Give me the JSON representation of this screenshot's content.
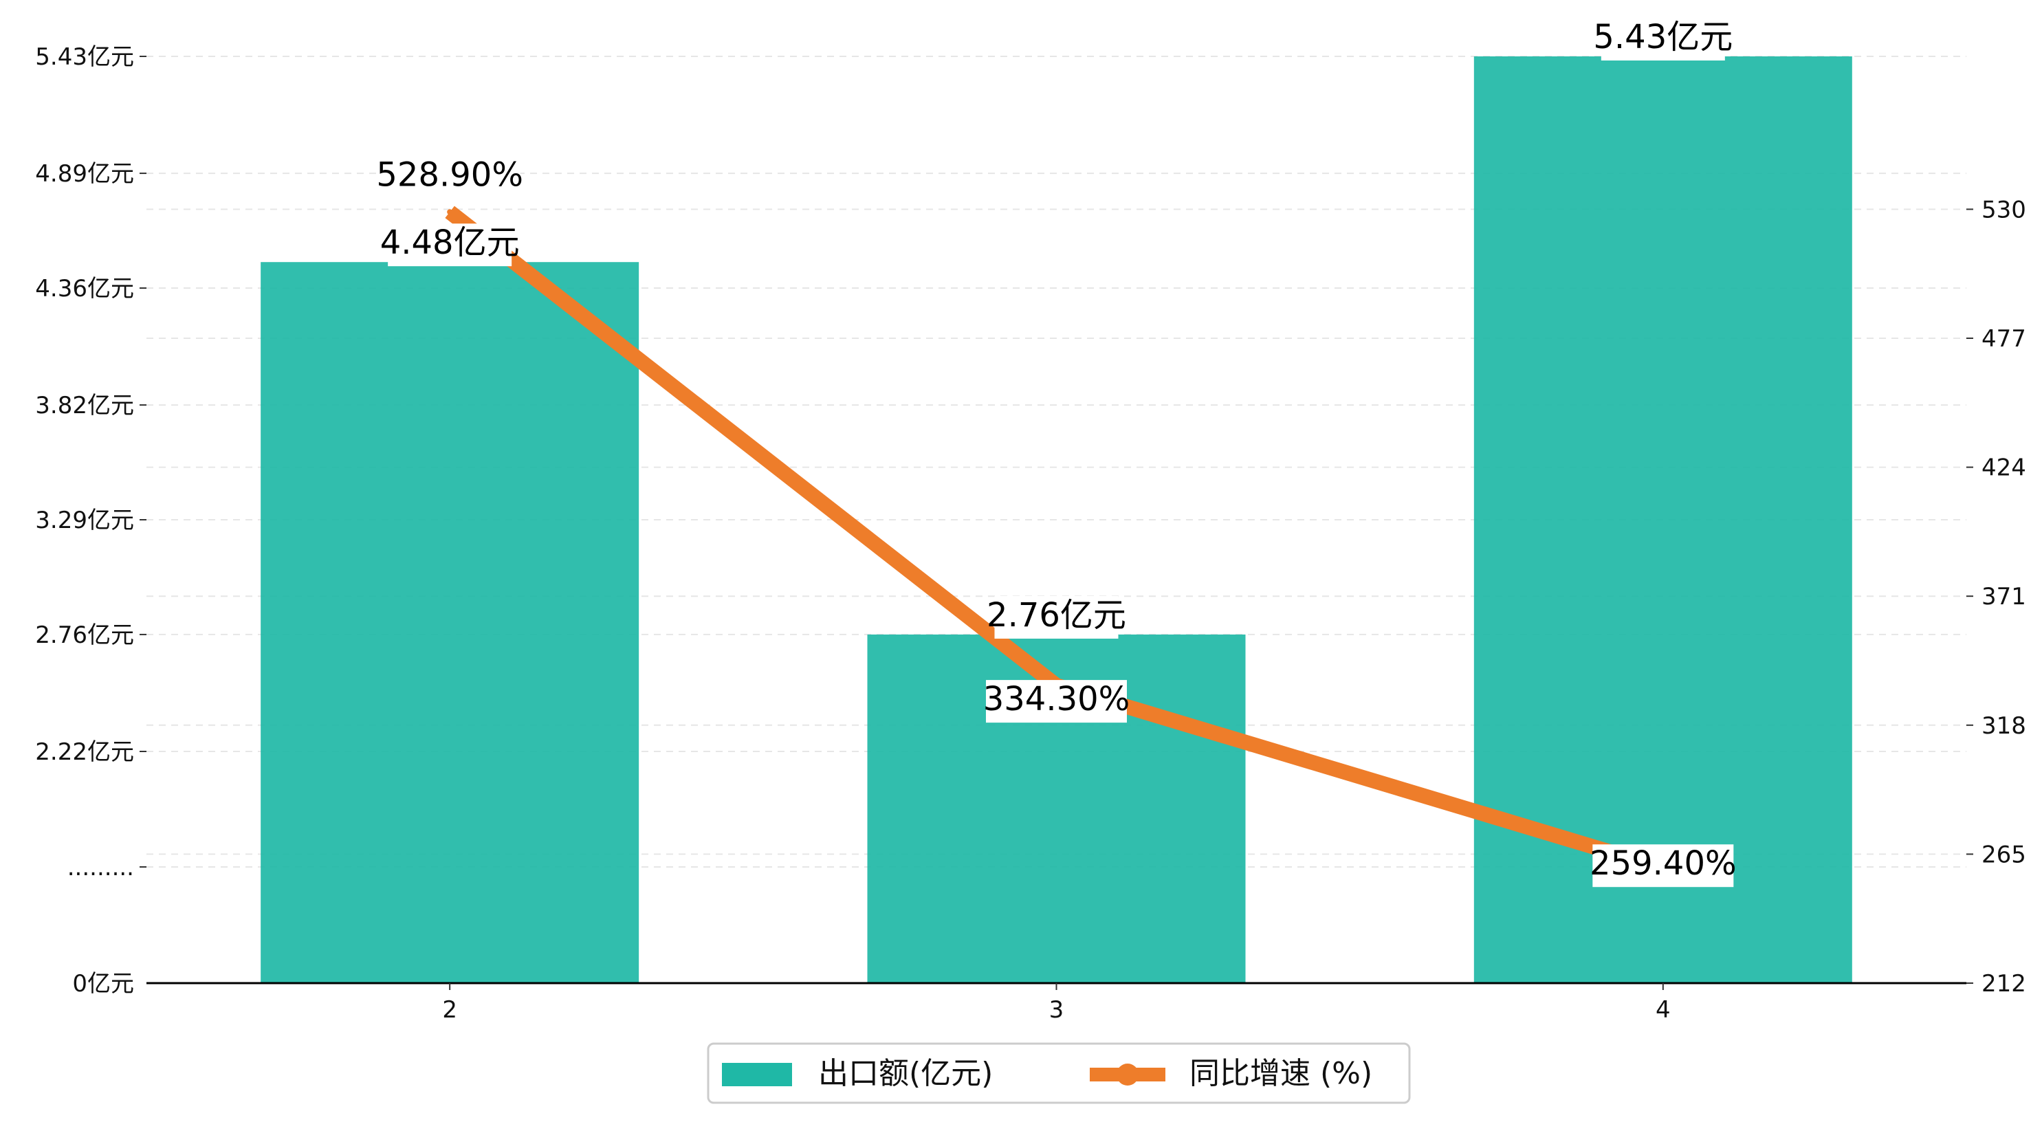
{
  "chart_data": {
    "type": "bar",
    "categories": [
      "2",
      "3",
      "4"
    ],
    "series": [
      {
        "name": "出口额(亿元)",
        "type": "bar",
        "axis": "left",
        "values": [
          4.48,
          2.76,
          5.43
        ],
        "labels": [
          "4.48亿元",
          "2.76亿元",
          "5.43亿元"
        ]
      },
      {
        "name": "同比增速 (%)",
        "type": "line",
        "axis": "right",
        "values": [
          528.9,
          334.3,
          259.4
        ],
        "labels": [
          "528.90%",
          "334.30%",
          "259.40%"
        ]
      }
    ],
    "y_left": {
      "ticks": [
        {
          "value": 0,
          "label": "0亿元"
        },
        {
          "value": 1.43,
          "label": "........."
        },
        {
          "value": 2.22,
          "label": "2.22亿元"
        },
        {
          "value": 2.76,
          "label": "2.76亿元"
        },
        {
          "value": 3.29,
          "label": "3.29亿元"
        },
        {
          "value": 3.82,
          "label": "3.82亿元"
        },
        {
          "value": 4.36,
          "label": "4.36亿元"
        },
        {
          "value": 4.89,
          "label": "4.89亿元"
        },
        {
          "value": 5.43,
          "label": "5.43亿元"
        }
      ],
      "axis_break": true
    },
    "y_right": {
      "ylim": [
        212,
        590
      ],
      "ticks": [
        "212",
        "265",
        "318",
        "371",
        "424",
        "477",
        "530"
      ]
    },
    "grid": "horizontal dashed",
    "legend_position": "bottom-center",
    "colors": {
      "bar": "#1fb8a6",
      "line": "#ee7d2a"
    }
  }
}
